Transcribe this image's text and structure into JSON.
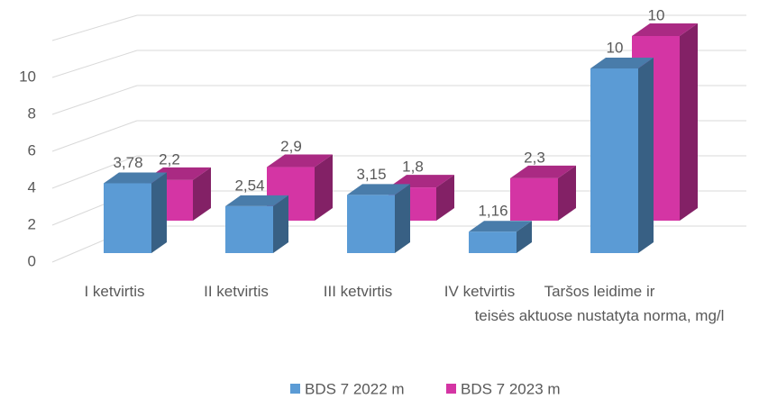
{
  "chart_data": {
    "type": "bar3d",
    "categories": [
      "I ketvirtis",
      "II ketvirtis",
      "III ketvirtis",
      "IV ketvirtis",
      "Taršos leidime ir\nteisės aktuose nustatyta norma, mg/l"
    ],
    "series": [
      {
        "name": "BDS 7 2022 m",
        "color": "#5b9bd5",
        "values": [
          3.78,
          2.54,
          3.15,
          1.16,
          10
        ],
        "value_labels": [
          "3,78",
          "2,54",
          "3,15",
          "1,16",
          "10"
        ]
      },
      {
        "name": "BDS 7 2023 m",
        "color": "#d435a4",
        "values": [
          2.2,
          2.9,
          1.8,
          2.3,
          10
        ],
        "value_labels": [
          "2,2",
          "2,9",
          "1,8",
          "2,3",
          "10"
        ]
      }
    ],
    "ylim": [
      0,
      12
    ],
    "yticks": [
      0,
      2,
      4,
      6,
      8,
      10
    ],
    "grid": true,
    "legend": "bottom"
  }
}
